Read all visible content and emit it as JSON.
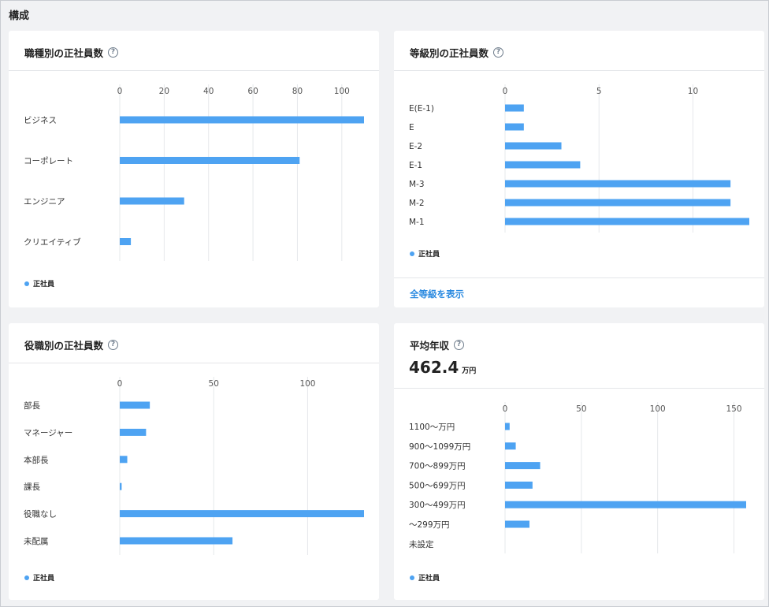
{
  "section": {
    "title": "構成"
  },
  "colors": {
    "bar": "#4ea3f2",
    "grid": "#e6e8eb",
    "text": "#333333",
    "tick": "#555555"
  },
  "cards": {
    "job_type": {
      "title": "職種別の正社員数",
      "legend": "正社員",
      "chart_data": {
        "type": "bar",
        "orientation": "horizontal",
        "categories": [
          "ビジネス",
          "コーポレート",
          "エンジニア",
          "クリエイティブ"
        ],
        "series": [
          {
            "name": "正社員",
            "values": [
              110,
              81,
              29,
              5
            ]
          }
        ],
        "xlim": [
          0,
          110
        ],
        "xticks": [
          0,
          20,
          40,
          60,
          80,
          100
        ]
      }
    },
    "grade": {
      "title": "等級別の正社員数",
      "legend": "正社員",
      "link": "全等級を表示",
      "chart_data": {
        "type": "bar",
        "orientation": "horizontal",
        "categories": [
          "E(E-1)",
          "E",
          "E-2",
          "E-1",
          "M-3",
          "M-2",
          "M-1"
        ],
        "series": [
          {
            "name": "正社員",
            "values": [
              1,
              1,
              3,
              4,
              12,
              12,
              13
            ]
          }
        ],
        "xlim": [
          0,
          13
        ],
        "xticks": [
          0,
          5,
          10
        ]
      }
    },
    "position": {
      "title": "役職別の正社員数",
      "legend": "正社員",
      "chart_data": {
        "type": "bar",
        "orientation": "horizontal",
        "categories": [
          "部長",
          "マネージャー",
          "本部長",
          "課長",
          "役職なし",
          "未配属"
        ],
        "series": [
          {
            "name": "正社員",
            "values": [
              16,
              14,
              4,
              1,
              130,
              60
            ]
          }
        ],
        "xlim": [
          0,
          130
        ],
        "xticks": [
          0,
          50,
          100
        ]
      }
    },
    "salary": {
      "title": "平均年収",
      "value": "462.4",
      "unit": "万円",
      "legend": "正社員",
      "chart_data": {
        "type": "bar",
        "orientation": "horizontal",
        "categories": [
          "1100〜万円",
          "900〜1099万円",
          "700〜899万円",
          "500〜699万円",
          "300〜499万円",
          "〜299万円",
          "未設定"
        ],
        "series": [
          {
            "name": "正社員",
            "values": [
              3,
              7,
              23,
              18,
              158,
              16,
              0
            ]
          }
        ],
        "xlim": [
          0,
          158
        ],
        "xticks": [
          0,
          50,
          100,
          150
        ]
      }
    }
  }
}
